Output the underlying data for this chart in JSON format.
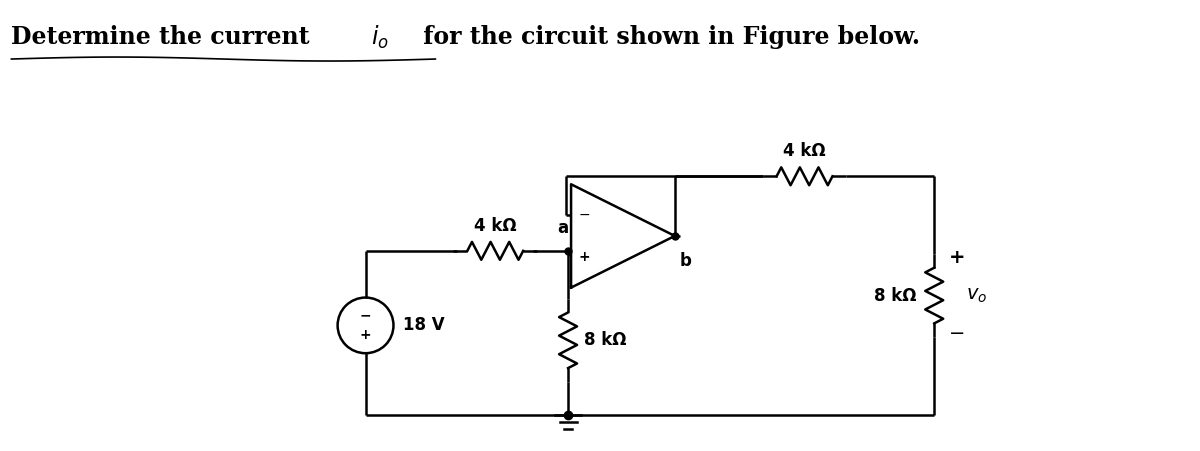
{
  "bg_color": "#ffffff",
  "line_color": "#000000",
  "title_text1": "Determine the current ",
  "title_io": "$i_o$",
  "title_text2": " for the circuit shown in Figure below.",
  "res_4k": "4 kΩ",
  "res_8k": "8 kΩ",
  "voltage_label": "18 V",
  "node_a": "a",
  "node_b": "b",
  "vo_label": "$v_o$",
  "plus": "+",
  "minus": "−",
  "title_fontsize": 17,
  "label_fontsize": 12,
  "lw": 1.8,
  "fig_w": 12.0,
  "fig_h": 4.51
}
